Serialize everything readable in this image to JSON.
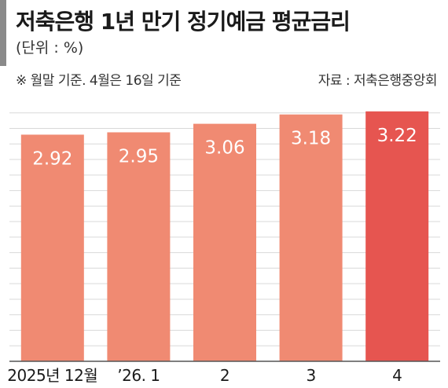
{
  "header": {
    "title": "저축은행 1년 만기 정기예금 평균금리",
    "unit": "(단위 : %)",
    "note": "※ 월말 기준. 4월은 16일 기준",
    "source": "자료 : 저축은행중앙회"
  },
  "colors": {
    "bar": "#f08a72",
    "bar_highlight": "#e65550",
    "grid": "#d9d9d9",
    "axis": "#555555"
  },
  "chart_data": {
    "type": "bar",
    "title": "저축은행 1년 만기 정기예금 평균금리",
    "xlabel": "",
    "ylabel": "",
    "categories": [
      "2025년 12월",
      "’26. 1",
      "2",
      "3",
      "4"
    ],
    "values": [
      2.92,
      2.95,
      3.06,
      3.18,
      3.22
    ],
    "value_labels": [
      "2.92",
      "2.95",
      "3.06",
      "3.18",
      "3.22"
    ],
    "highlight_index": 4,
    "ylim": [
      0,
      3.4
    ],
    "grid": true,
    "grid_step": 0.2,
    "legend": "none"
  }
}
